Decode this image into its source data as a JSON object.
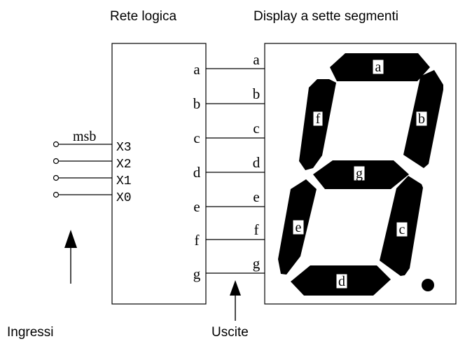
{
  "titles": {
    "logic": "Rete logica",
    "display": "Display a sette segmenti"
  },
  "inputs": {
    "caption": "Ingressi",
    "msb": "msb",
    "pins": [
      "X3",
      "X2",
      "X1",
      "X0"
    ]
  },
  "outputs": {
    "caption": "Uscite",
    "left_labels": [
      "a",
      "b",
      "c",
      "d",
      "e",
      "f",
      "g"
    ],
    "right_labels": [
      "a",
      "b",
      "c",
      "d",
      "e",
      "f",
      "g"
    ]
  },
  "segments": {
    "a": "a",
    "b": "b",
    "c": "c",
    "d": "d",
    "e": "e",
    "f": "f",
    "g": "g"
  },
  "colors": {
    "ink": "#000000",
    "background": "#ffffff"
  }
}
